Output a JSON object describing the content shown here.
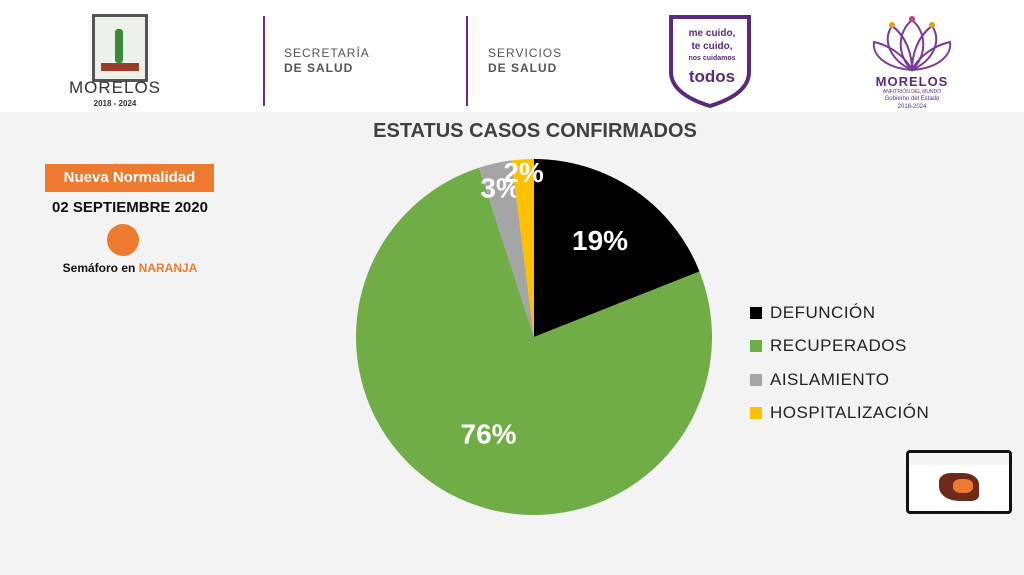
{
  "header": {
    "state_name": "MORELOS",
    "state_years": "2018 - 2024",
    "dept1_top": "SECRETARÍA",
    "dept1_bottom": "DE SALUD",
    "dept2_top": "SERVICIOS",
    "dept2_bottom": "DE SALUD",
    "campaign": [
      "me cuido,",
      "te cuido,",
      "nos cuidamos",
      "todos"
    ],
    "gov_name": "MORELOS",
    "gov_tagline": "ANFITRIÓN DEL MUNDO",
    "gov_sub": "Gobierno del Estado",
    "gov_years": "2018-2024"
  },
  "status": {
    "phase": "Nueva Normalidad",
    "date": "02 SEPTIEMBRE 2020",
    "signal_prefix": "Semáforo en",
    "signal_color_word": "NARANJA",
    "signal_hex": "#ee7a2f"
  },
  "chart_data": {
    "type": "pie",
    "title": "ESTATUS CASOS CONFIRMADOS",
    "legend_position": "right",
    "start_angle_deg": 0,
    "direction": "clockwise",
    "slices": [
      {
        "label": "DEFUNCIÓN",
        "value": 19,
        "display": "19%",
        "color": "#000000",
        "text_color": "#ffffff"
      },
      {
        "label": "RECUPERADOS",
        "value": 76,
        "display": "76%",
        "color": "#70ad47",
        "text_color": "#ffffff"
      },
      {
        "label": "AISLAMIENTO",
        "value": 3,
        "display": "3%",
        "color": "#a5a5a5",
        "text_color": "#ffffff"
      },
      {
        "label": "HOSPITALIZACIÓN",
        "value": 2,
        "display": "2%",
        "color": "#ffc000",
        "text_color": "#ffffff"
      }
    ]
  }
}
